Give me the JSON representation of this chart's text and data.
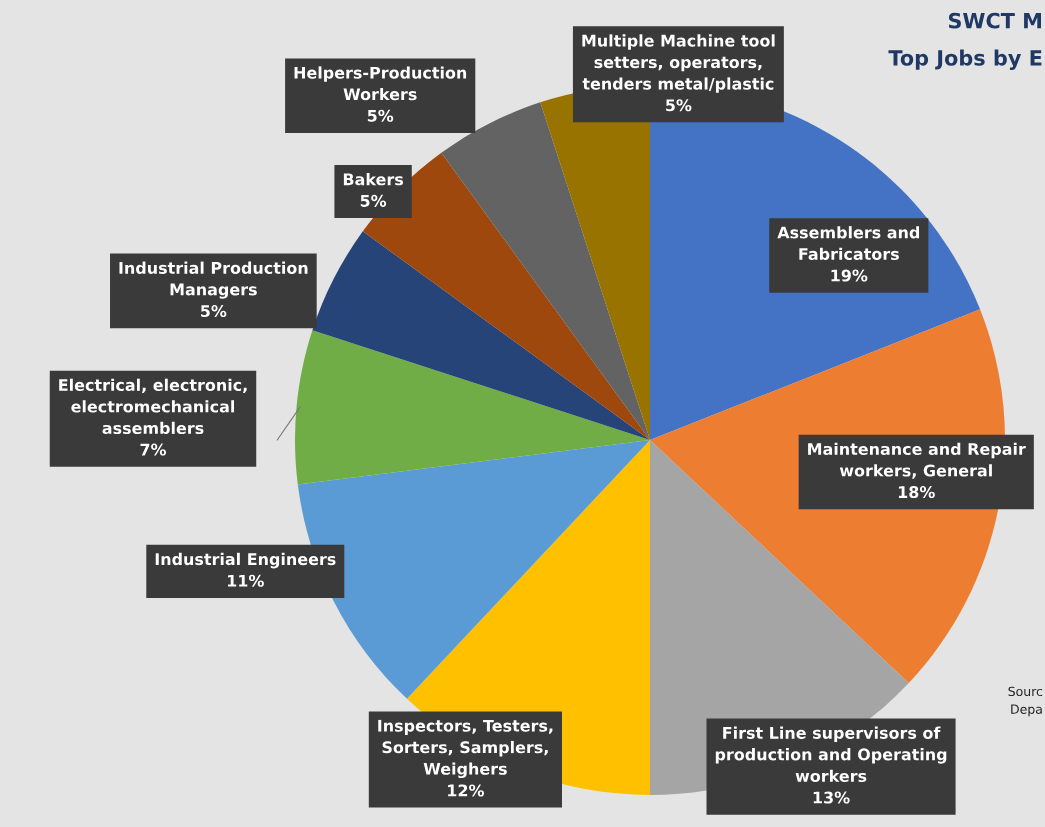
{
  "chart_data": {
    "type": "pie",
    "title": "SWCT M",
    "subtitle": "Top Jobs by E",
    "categories": [
      "Assemblers and\nFabricators",
      "Maintenance and Repair\nworkers, General",
      "First Line supervisors of\nproduction and Operating\nworkers",
      "Inspectors, Testers,\nSorters, Samplers,\nWeighers",
      "Industrial Engineers",
      "Electrical, electronic,\nelectromechanical\nassemblers",
      "Industrial Production\nManagers",
      "Bakers",
      "Helpers-Production\nWorkers",
      "Multiple Machine tool\nsetters, operators,\ntenders metal/plastic"
    ],
    "values": [
      19,
      18,
      13,
      12,
      11,
      7,
      5,
      5,
      5,
      5
    ],
    "value_labels": [
      "19%",
      "18%",
      "13%",
      "12%",
      "11%",
      "7%",
      "5%",
      "5%",
      "5%",
      "5%"
    ],
    "colors": [
      "#4472c4",
      "#ed7d31",
      "#a5a5a5",
      "#ffc000",
      "#5b9bd5",
      "#70ad47",
      "#264478",
      "#9e480e",
      "#636363",
      "#997300"
    ],
    "annotations": [
      "Sourc\nDepa"
    ]
  }
}
